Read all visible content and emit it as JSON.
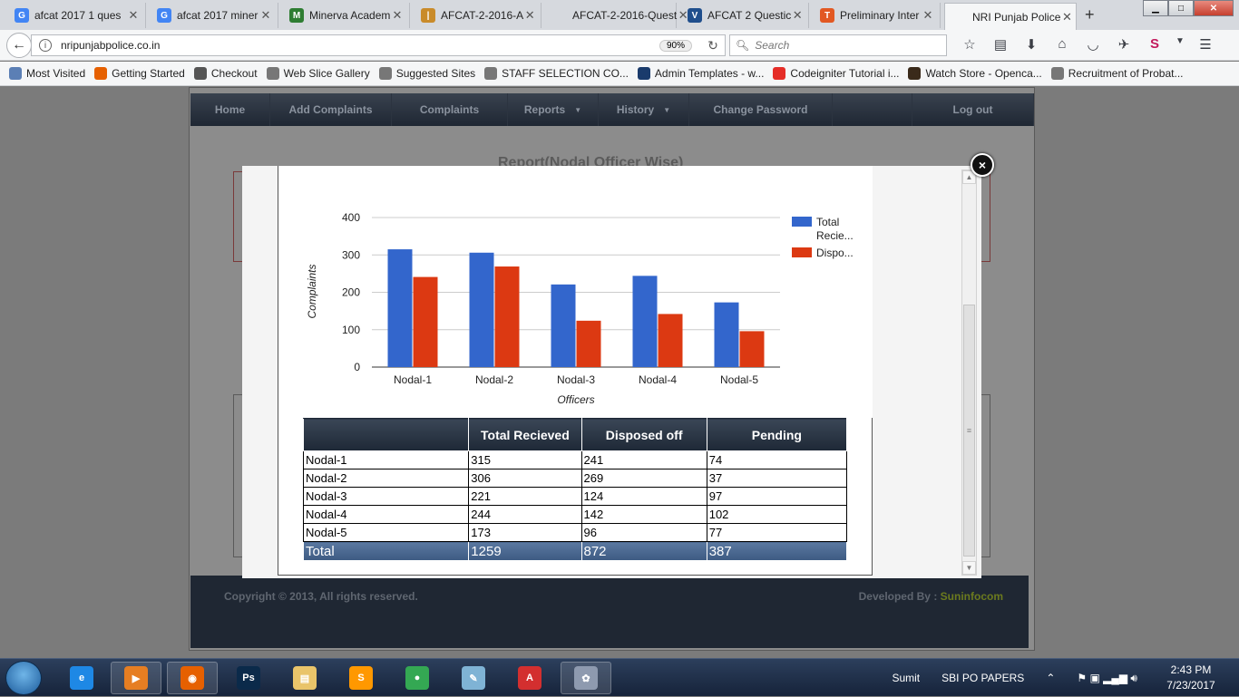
{
  "browser": {
    "tabs": [
      {
        "title": "afcat 2017 1 ques",
        "icon": "google-icon",
        "color": "#4285f4",
        "glyph": "G"
      },
      {
        "title": "afcat 2017 miner",
        "icon": "google-icon",
        "color": "#4285f4",
        "glyph": "G"
      },
      {
        "title": "Minerva Academ",
        "icon": "minerva-icon",
        "color": "#2e7d32",
        "glyph": "M"
      },
      {
        "title": "AFCAT-2-2016-A",
        "icon": "stripes-icon",
        "color": "#c98b2a",
        "glyph": "|"
      },
      {
        "title": "AFCAT-2-2016-Quest",
        "icon": "blank-icon",
        "color": "#d6d9de",
        "glyph": ""
      },
      {
        "title": "AFCAT 2 Questic",
        "icon": "shield-icon",
        "color": "#1f4e8c",
        "glyph": "V"
      },
      {
        "title": "Preliminary Inter",
        "icon": "t-icon",
        "color": "#e25822",
        "glyph": "T"
      },
      {
        "title": "NRI Punjab Police",
        "icon": "blank-icon",
        "color": "#f5f6f7",
        "glyph": "",
        "active": true
      }
    ],
    "url": "nripunjabpolice.co.in",
    "zoom": "90%",
    "search_placeholder": "Search",
    "bookmarks": [
      {
        "label": "Most Visited",
        "color": "#5b7fb5"
      },
      {
        "label": "Getting Started",
        "color": "#e66000"
      },
      {
        "label": "Checkout",
        "color": "#555555"
      },
      {
        "label": "Web Slice Gallery",
        "color": "#777777"
      },
      {
        "label": "Suggested Sites",
        "color": "#777777"
      },
      {
        "label": "STAFF SELECTION CO...",
        "color": "#777777"
      },
      {
        "label": "Admin Templates - w...",
        "color": "#1a3b6c"
      },
      {
        "label": "Codeigniter Tutorial i...",
        "color": "#e52d27"
      },
      {
        "label": "Watch Store - Openca...",
        "color": "#3a2a1a"
      },
      {
        "label": "Recruitment of Probat...",
        "color": "#777777"
      }
    ]
  },
  "site": {
    "nav": [
      {
        "label": "Home",
        "width": 88
      },
      {
        "label": "Add Complaints",
        "width": 134
      },
      {
        "label": "Complaints",
        "width": 128
      },
      {
        "label": "Reports",
        "width": 100,
        "caret": true
      },
      {
        "label": "History",
        "width": 100,
        "caret": true
      },
      {
        "label": "Change Password",
        "width": 158
      },
      {
        "label": "",
        "width": 88
      },
      {
        "label": "Log out",
        "width": 134
      }
    ],
    "bg_title": "Report(Nodal Officer Wise)",
    "footer_copyright": "Copyright © 2013, All rights reserved.",
    "footer_dev_label": "Developed By :",
    "footer_dev_name": "Suninfocom"
  },
  "modal": {
    "close": "×"
  },
  "chart_data": {
    "type": "bar",
    "categories": [
      "Nodal-1",
      "Nodal-2",
      "Nodal-3",
      "Nodal-4",
      "Nodal-5"
    ],
    "series": [
      {
        "name": "Total Recie...",
        "color": "#3366cc",
        "values": [
          315,
          306,
          221,
          244,
          173
        ]
      },
      {
        "name": "Dispo...",
        "color": "#dc3912",
        "values": [
          241,
          269,
          124,
          142,
          96
        ]
      }
    ],
    "xlabel": "Officers",
    "ylabel": "Complaints",
    "ylim": [
      0,
      400
    ],
    "yticks": [
      0,
      100,
      200,
      300,
      400
    ],
    "grid": true,
    "legend": "right"
  },
  "table": {
    "headers": [
      "",
      "Total Recieved",
      "Disposed off",
      "Pending"
    ],
    "rows": [
      [
        "Nodal-1",
        "315",
        "241",
        "74"
      ],
      [
        "Nodal-2",
        "306",
        "269",
        "37"
      ],
      [
        "Nodal-3",
        "221",
        "124",
        "97"
      ],
      [
        "Nodal-4",
        "244",
        "142",
        "102"
      ],
      [
        "Nodal-5",
        "173",
        "96",
        "77"
      ]
    ],
    "total": [
      "Total",
      "1259",
      "872",
      "387"
    ]
  },
  "taskbar": {
    "icons": [
      {
        "name": "internet-explorer-icon",
        "color": "#1e88e5",
        "glyph": "e"
      },
      {
        "name": "media-player-icon",
        "color": "#e67e22",
        "glyph": "▶",
        "active": true
      },
      {
        "name": "firefox-icon",
        "color": "#e66000",
        "glyph": "◉",
        "active": true
      },
      {
        "name": "photoshop-icon",
        "color": "#0b2a4a",
        "glyph": "Ps"
      },
      {
        "name": "file-explorer-icon",
        "color": "#e9c46a",
        "glyph": "▤"
      },
      {
        "name": "sublime-icon",
        "color": "#ff9800",
        "glyph": "S"
      },
      {
        "name": "chrome-icon",
        "color": "#34a853",
        "glyph": "●"
      },
      {
        "name": "notepad-icon",
        "color": "#7fb3d5",
        "glyph": "✎"
      },
      {
        "name": "pdf-icon",
        "color": "#d32f2f",
        "glyph": "A"
      },
      {
        "name": "paint-icon",
        "color": "#8e9aaf",
        "glyph": "✿",
        "active": true
      }
    ],
    "user": "Sumit",
    "toolbar_label": "SBI PO PAPERS",
    "time": "2:43 PM",
    "date": "7/23/2017"
  }
}
